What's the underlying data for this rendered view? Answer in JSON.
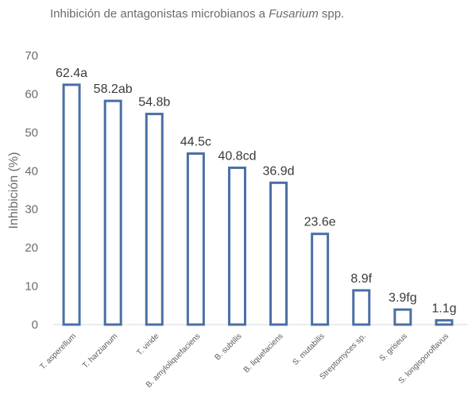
{
  "chart_data": {
    "type": "bar",
    "title_prefix": "Inhibición de antagonistas microbianos a ",
    "title_italic": "Fusarium",
    "title_suffix": " spp.",
    "ylabel": "Inhibición (%)",
    "xlabel": "",
    "ylim": [
      0,
      70
    ],
    "yticks": [
      0,
      10,
      20,
      30,
      40,
      50,
      60,
      70
    ],
    "grid": false,
    "legend": "none",
    "bar_style": "outline",
    "bar_color": "#4a6fa5",
    "categories": [
      "T. asperellum",
      "T. harzianum",
      "T. viride",
      "B. amyloliquefaciens",
      "B. subtilis",
      "B. liquefaciens",
      "S. mutabilis",
      "Streptomyces sp.",
      "S. griseus",
      "S. longisporoflavus"
    ],
    "values": [
      62.4,
      58.2,
      54.8,
      44.5,
      40.8,
      36.9,
      23.6,
      8.9,
      3.9,
      1.1
    ],
    "data_labels": [
      "62.4a",
      "58.2ab",
      "54.8b",
      "44.5c",
      "40.8cd",
      "36.9d",
      "23.6e",
      "8.9f",
      "3.9fg",
      "1.1g"
    ]
  }
}
